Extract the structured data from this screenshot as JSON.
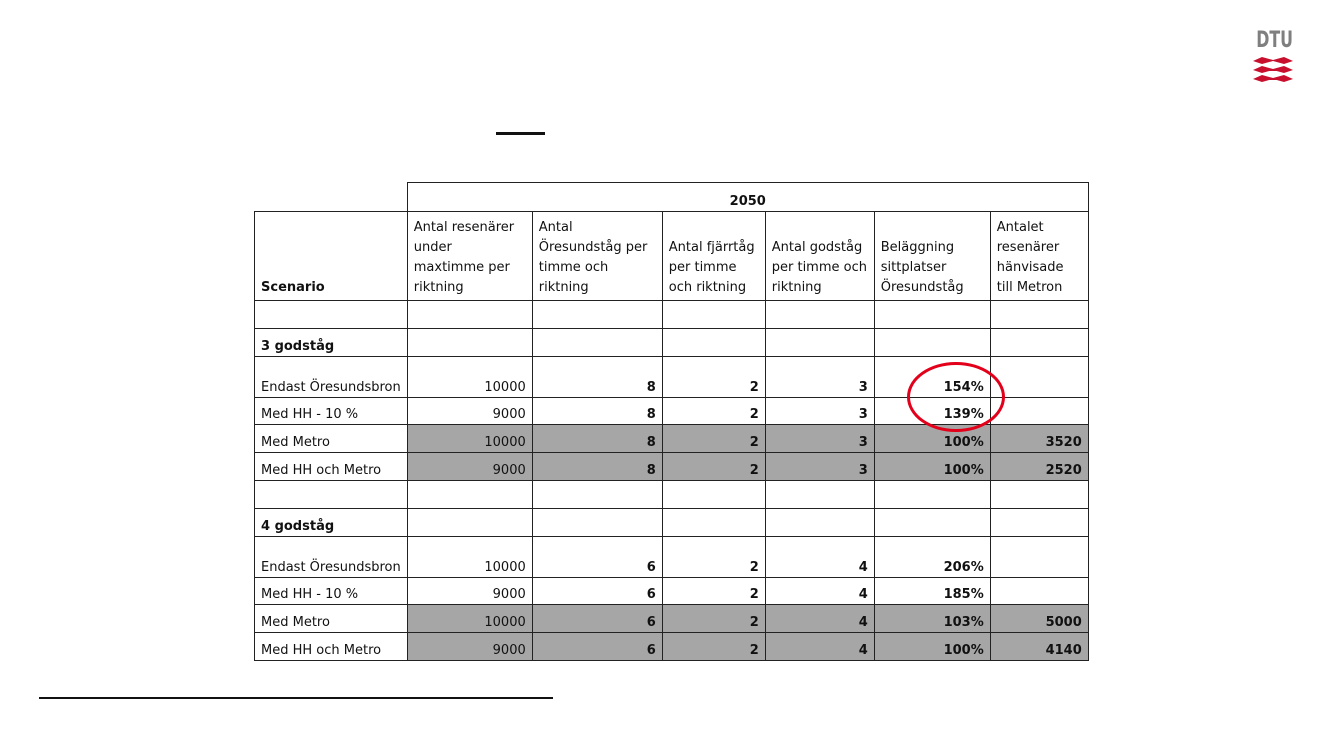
{
  "logo": {
    "text": "DTU"
  },
  "table": {
    "year": "2050",
    "headers": {
      "scenario": "Scenario",
      "cols": [
        "Antal resenärer under maxtimme per riktning",
        "Antal Öresundståg per timme och riktning",
        "Antal fjärrtåg per timme och riktning",
        "Antal godståg per timme och riktning",
        "Beläggning sittplatser Öresundståg",
        "Antalet resenärer hänvisade till Metron"
      ]
    },
    "groups": [
      {
        "label": "3 godståg",
        "rows": [
          {
            "scenario": "Endast Öresundsbron",
            "resenarer": "10000",
            "oresundstag": "8",
            "fjarrtag": "2",
            "godstag": "3",
            "belaggning": "154%",
            "metro": "",
            "shaded": false
          },
          {
            "scenario": "Med HH - 10 %",
            "resenarer": "9000",
            "oresundstag": "8",
            "fjarrtag": "2",
            "godstag": "3",
            "belaggning": "139%",
            "metro": "",
            "shaded": false
          },
          {
            "scenario": "Med Metro",
            "resenarer": "10000",
            "oresundstag": "8",
            "fjarrtag": "2",
            "godstag": "3",
            "belaggning": "100%",
            "metro": "3520",
            "shaded": true
          },
          {
            "scenario": "Med HH och Metro",
            "resenarer": "9000",
            "oresundstag": "8",
            "fjarrtag": "2",
            "godstag": "3",
            "belaggning": "100%",
            "metro": "2520",
            "shaded": true
          }
        ]
      },
      {
        "label": "4 godståg",
        "rows": [
          {
            "scenario": "Endast Öresundsbron",
            "resenarer": "10000",
            "oresundstag": "6",
            "fjarrtag": "2",
            "godstag": "4",
            "belaggning": "206%",
            "metro": "",
            "shaded": false
          },
          {
            "scenario": "Med HH - 10 %",
            "resenarer": "9000",
            "oresundstag": "6",
            "fjarrtag": "2",
            "godstag": "4",
            "belaggning": "185%",
            "metro": "",
            "shaded": false
          },
          {
            "scenario": "Med Metro",
            "resenarer": "10000",
            "oresundstag": "6",
            "fjarrtag": "2",
            "godstag": "4",
            "belaggning": "103%",
            "metro": "5000",
            "shaded": true
          },
          {
            "scenario": "Med HH och Metro",
            "resenarer": "9000",
            "oresundstag": "6",
            "fjarrtag": "2",
            "godstag": "4",
            "belaggning": "100%",
            "metro": "4140",
            "shaded": true
          }
        ]
      }
    ]
  },
  "colors": {
    "shade": "#a6a6a6",
    "highlight_circle": "#e3001b",
    "logo_red": "#c8102e",
    "logo_grey": "#7f7f7f"
  }
}
